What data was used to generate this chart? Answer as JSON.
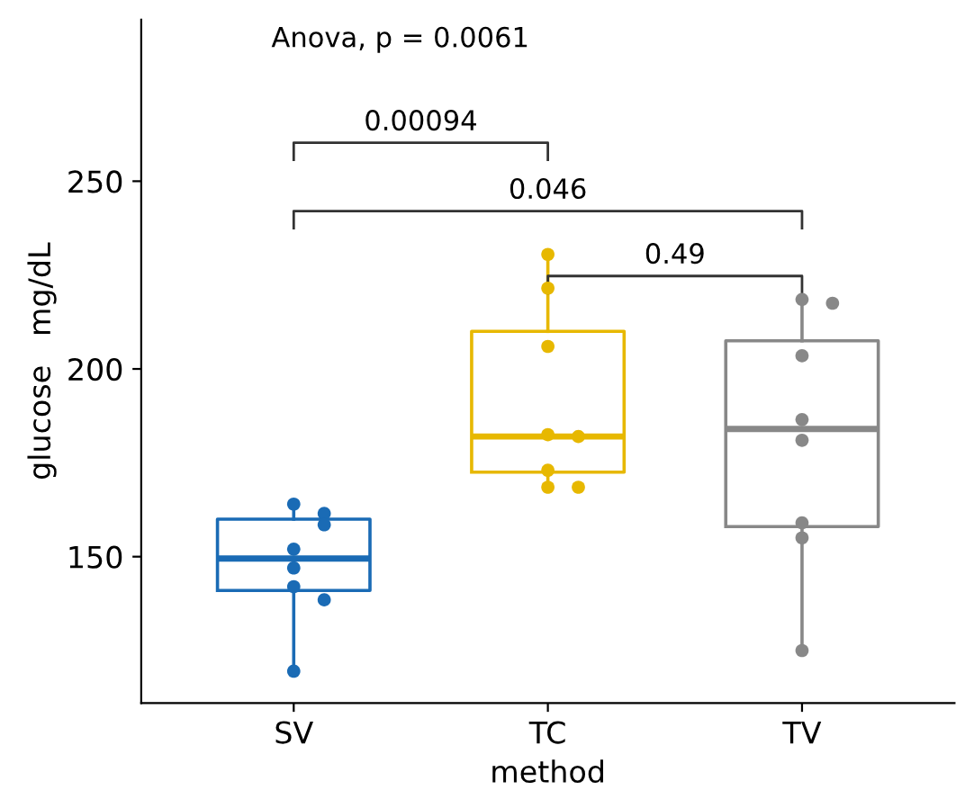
{
  "chart_data": {
    "type": "box",
    "xlabel": "method",
    "ylabel": "glucose   mg/dL",
    "categories": [
      "SV",
      "TC",
      "TV"
    ],
    "colors": [
      "#1a6bb5",
      "#e7b800",
      "#888888"
    ],
    "boxes": [
      {
        "low": 119.5,
        "q1": 141,
        "median": 149.5,
        "q3": 160,
        "high": 164
      },
      {
        "low": 168.5,
        "q1": 172.5,
        "median": 182,
        "q3": 210,
        "high": 230.5
      },
      {
        "low": 125.5,
        "q1": 158,
        "median": 184,
        "q3": 207.5,
        "high": 217.5
      }
    ],
    "series": [
      {
        "type": "scatter",
        "x": [
          "SV",
          "SV",
          "SV",
          "SV",
          "SV",
          "SV",
          "SV",
          "SV",
          "TC",
          "TC",
          "TC",
          "TC",
          "TC",
          "TC",
          "TC",
          "TC",
          "TV",
          "TV",
          "TV",
          "TV",
          "TV",
          "TV",
          "TV",
          "TV"
        ],
        "values": [
          164,
          161.5,
          158.5,
          152,
          147,
          142,
          138.5,
          119.5,
          230.5,
          221.5,
          206,
          182.5,
          182,
          173,
          168.5,
          168.5,
          218.5,
          217.5,
          203.5,
          186.5,
          181,
          159,
          155,
          125
        ],
        "colors": [
          "#1a6bb5",
          "#1a6bb5",
          "#1a6bb5",
          "#1a6bb5",
          "#1a6bb5",
          "#1a6bb5",
          "#1a6bb5",
          "#1a6bb5",
          "#e7b800",
          "#e7b800",
          "#e7b800",
          "#e7b800",
          "#e7b800",
          "#e7b800",
          "#e7b800",
          "#e7b800",
          "#888888",
          "#888888",
          "#888888",
          "#888888",
          "#888888",
          "#888888",
          "#888888",
          "#888888"
        ]
      }
    ],
    "ylim": [
      111,
      293
    ],
    "yticks": [
      150,
      200,
      250
    ],
    "grid": false,
    "legend": false,
    "annotations": [
      "Anova, p = 0.0061",
      "0.00094",
      "0.046",
      "0.49"
    ]
  }
}
